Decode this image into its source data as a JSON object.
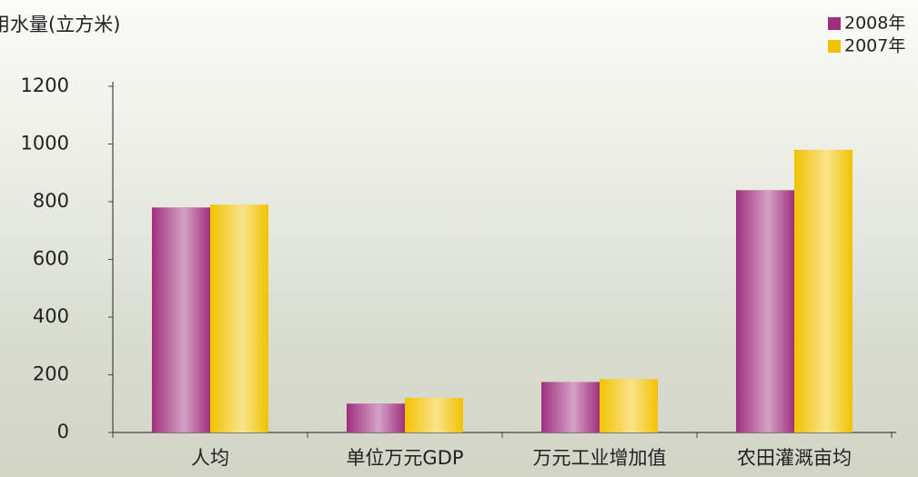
{
  "chart_data": {
    "type": "bar",
    "title": "用水量(立方米)",
    "categories": [
      "人均",
      "单位万元GDP",
      "万元工业增加值",
      "农田灌溉亩均"
    ],
    "series": [
      {
        "name": "2008年",
        "color": "#a0307f",
        "values": [
          780,
          100,
          175,
          840
        ]
      },
      {
        "name": "2007年",
        "color": "#f2c200",
        "values": [
          790,
          120,
          185,
          980
        ]
      }
    ],
    "ylim": [
      0,
      1200
    ],
    "yticks": [
      0,
      200,
      400,
      600,
      800,
      1000,
      1200
    ],
    "legend": "top-right"
  }
}
